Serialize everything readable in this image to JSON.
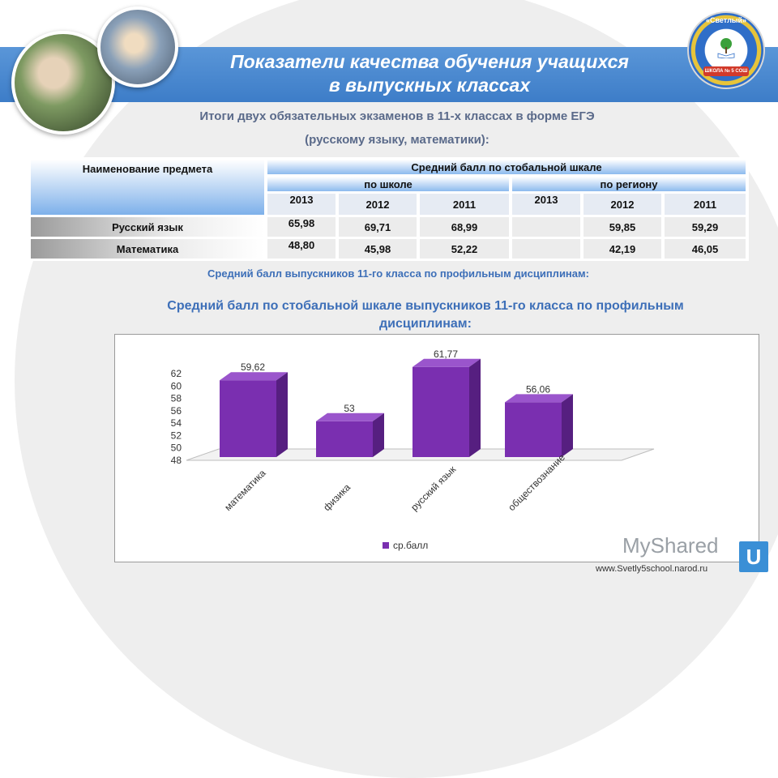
{
  "header": {
    "title_line1": "Показатели качества обучения учащихся",
    "title_line2": "в выпускных классах",
    "logo_text": "«Светлый»",
    "logo_ribbon": "ШКОЛА № 5 СОШ"
  },
  "subtitle": {
    "line1": "Итоги двух обязательных экзаменов в 11-х классах в форме ЕГЭ",
    "line2": "(русскому языку, математики):"
  },
  "table": {
    "col_subject": "Наименование предмета",
    "col_avg": "Средний балл по стобальной шкале",
    "group_school": "по школе",
    "group_region": "по региону",
    "years": [
      "2013",
      "2012",
      "2011",
      "2013",
      "2012",
      "2011"
    ],
    "rows": [
      {
        "subject": "Русский язык",
        "values": [
          "65,98",
          "69,71",
          "68,99",
          "",
          "59,85",
          "59,29"
        ]
      },
      {
        "subject": "Математика",
        "values": [
          "48,80",
          "45,98",
          "52,22",
          "",
          "42,19",
          "46,05"
        ]
      }
    ]
  },
  "profile_note": "Средний балл выпускников 11-го класса по профильным дисциплинам:",
  "chart_heading": {
    "line1": "Средний балл по стобальной шкале выпускников 11-го класса по профильным",
    "line2": "дисциплинам:"
  },
  "chart_data": {
    "type": "bar",
    "categories": [
      "математика",
      "физика",
      "русский язык",
      "обществознание"
    ],
    "series": [
      {
        "name": "ср.балл",
        "values": [
          59.62,
          53,
          61.77,
          56.06
        ]
      }
    ],
    "value_labels": [
      "59,62",
      "53",
      "61,77",
      "56,06"
    ],
    "ylim": [
      48,
      62
    ],
    "yticks": [
      "48",
      "50",
      "52",
      "54",
      "56",
      "58",
      "60",
      "62"
    ],
    "bar_color": "#7a2fb0",
    "legend_position": "bottom"
  },
  "footer": {
    "site": "www.Svetly5school.narod.ru",
    "watermark": "MyShared"
  }
}
